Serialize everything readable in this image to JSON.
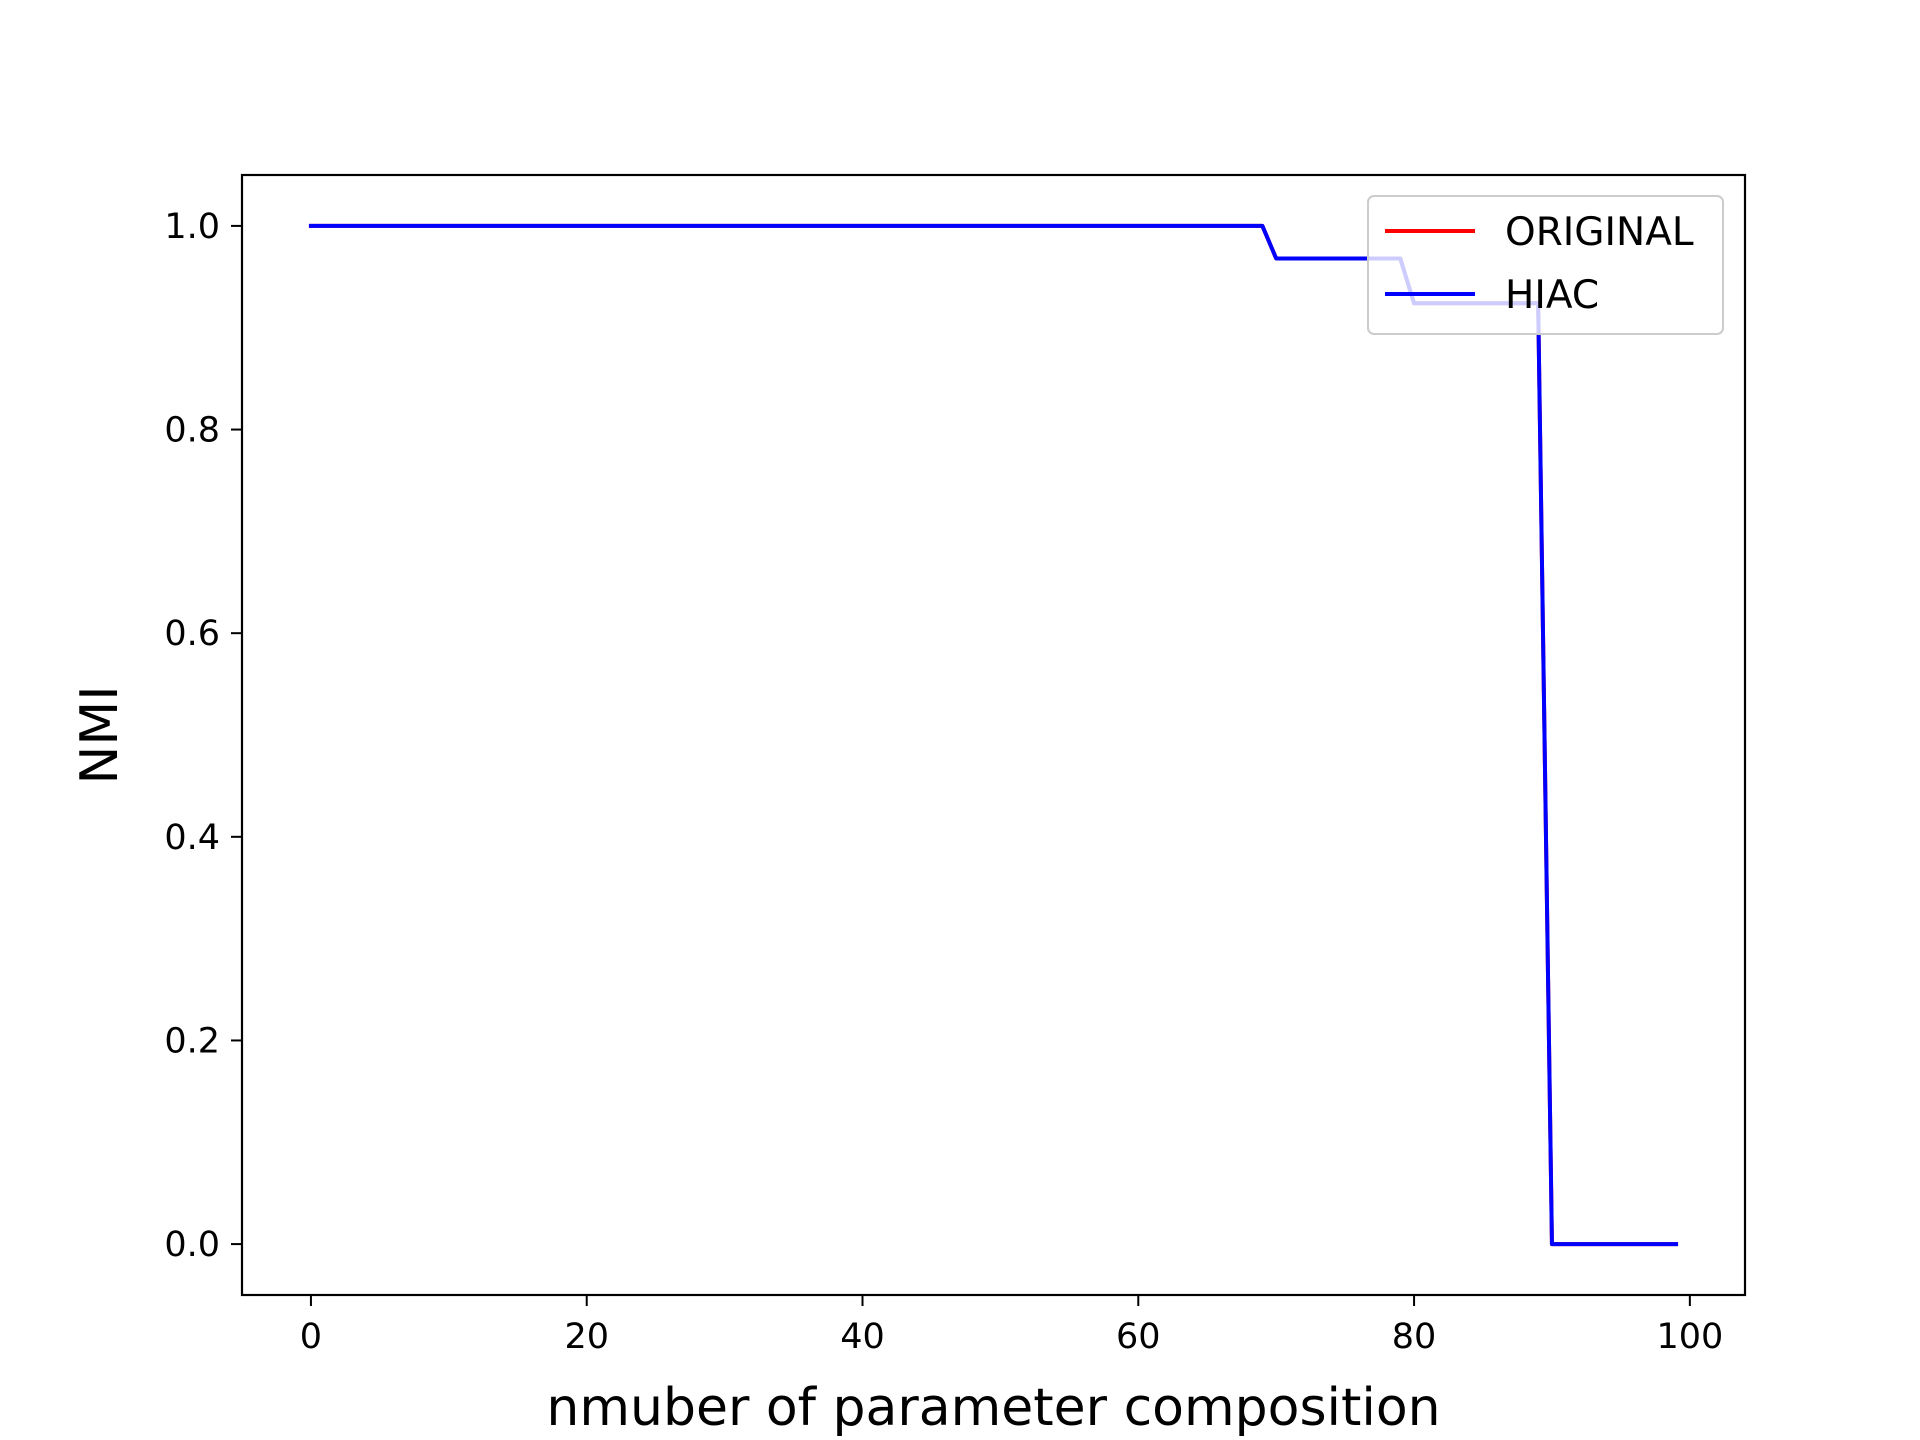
{
  "chart_data": {
    "type": "line",
    "xlabel": "nmuber of parameter composition",
    "ylabel": "NMI",
    "xlim": [
      -5,
      104
    ],
    "ylim": [
      -0.05,
      1.05
    ],
    "x_ticks": [
      0,
      20,
      40,
      60,
      80,
      100
    ],
    "y_ticks": [
      0.0,
      0.2,
      0.4,
      0.6,
      0.8,
      1.0
    ],
    "x_tick_labels": [
      "0",
      "20",
      "40",
      "60",
      "80",
      "100"
    ],
    "y_tick_labels": [
      "0.0",
      "0.2",
      "0.4",
      "0.6",
      "0.8",
      "1.0"
    ],
    "grid": false,
    "legend_position": "top-right",
    "series": [
      {
        "name": "ORIGINAL",
        "color": "#ff0000",
        "x": [
          0,
          69,
          70,
          79,
          80,
          89,
          90,
          99
        ],
        "y": [
          1.0,
          1.0,
          0.968,
          0.968,
          0.924,
          0.924,
          0.0,
          0.0
        ]
      },
      {
        "name": "HIAC",
        "color": "#0000ff",
        "x": [
          0,
          69,
          70,
          79,
          80,
          89,
          90,
          99
        ],
        "y": [
          1.0,
          1.0,
          0.968,
          0.968,
          0.924,
          0.924,
          0.0,
          0.0
        ]
      }
    ]
  }
}
